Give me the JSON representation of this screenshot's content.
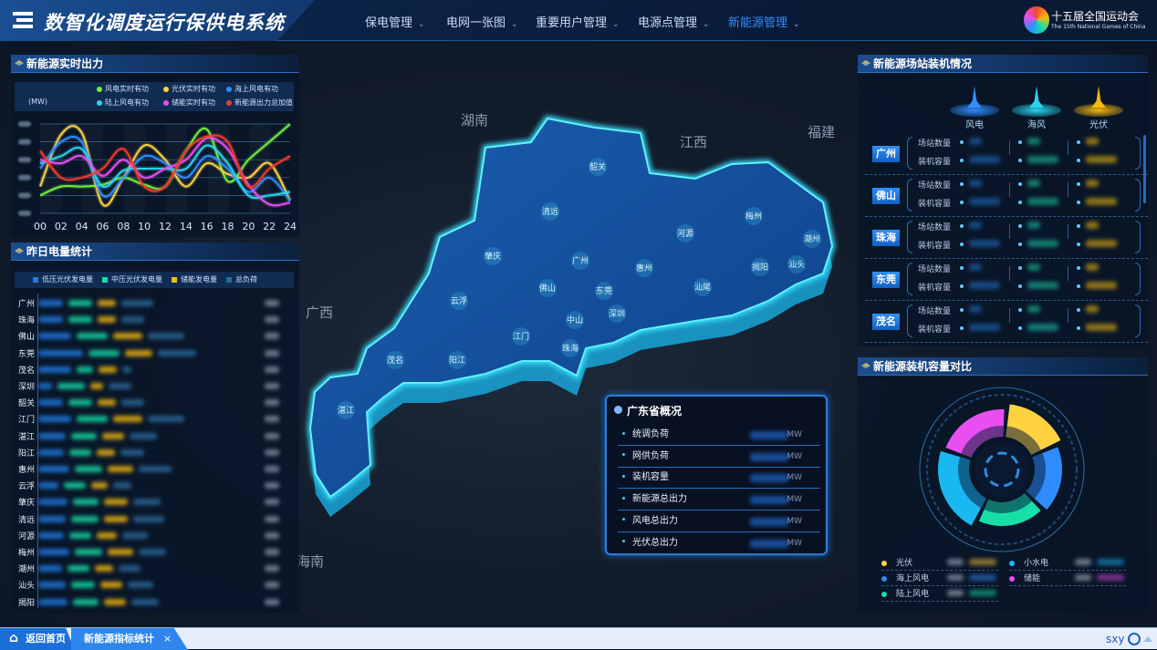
{
  "app": {
    "title": "数智化调度运行保供电系统",
    "logo_text": "十五届全国运动会",
    "logo_subtext": "The 15th National Games of China"
  },
  "nav": [
    {
      "label": "保电管理",
      "active": false
    },
    {
      "label": "电网一张图",
      "active": false
    },
    {
      "label": "重要用户管理",
      "active": false
    },
    {
      "label": "电源点管理",
      "active": false
    },
    {
      "label": "新能源管理",
      "active": true
    }
  ],
  "realtime": {
    "title": "新能源实时出力",
    "unit": "(MW)",
    "legend": [
      "风电实时有功",
      "光伏实时有功",
      "海上风电有功",
      "陆上风电有功",
      "储能实时有功",
      "新能源出力总加值"
    ]
  },
  "chart_data": [
    {
      "type": "line",
      "title": "新能源实时出力",
      "ylabel": "(MW)",
      "x": [
        "00",
        "02",
        "04",
        "06",
        "08",
        "10",
        "12",
        "14",
        "16",
        "18",
        "20",
        "22",
        "24"
      ],
      "ylim": [
        0,
        5
      ],
      "grid": true,
      "legend_position": "top",
      "series": [
        {
          "name": "风电实时有功",
          "color": "#6ef03c",
          "values": [
            1.0,
            1.5,
            1.5,
            1.6,
            2.0,
            1.6,
            1.5,
            3.5,
            4.7,
            1.8,
            3.0,
            4.0,
            5.0
          ]
        },
        {
          "name": "光伏实时有功",
          "color": "#ffd23f",
          "values": [
            1.5,
            4.4,
            4.5,
            0.5,
            2.0,
            3.8,
            3.0,
            1.5,
            2.8,
            2.2,
            2.0,
            2.8,
            0.7
          ]
        },
        {
          "name": "海上风电有功",
          "color": "#2f8dff",
          "values": [
            2.5,
            4.0,
            4.0,
            1.0,
            2.0,
            3.2,
            2.8,
            2.0,
            3.2,
            2.5,
            1.2,
            2.0,
            0.7
          ]
        },
        {
          "name": "陆上风电有功",
          "color": "#2ad4f0",
          "values": [
            2.8,
            3.2,
            3.6,
            1.5,
            2.4,
            2.5,
            2.5,
            2.5,
            3.8,
            2.8,
            1.0,
            1.0,
            1.2
          ]
        },
        {
          "name": "储能实时有功",
          "color": "#e84ef0",
          "values": [
            3.0,
            2.8,
            3.2,
            2.1,
            3.0,
            2.0,
            2.5,
            3.0,
            4.2,
            3.6,
            1.6,
            0.5,
            0.6
          ]
        },
        {
          "name": "新能源出力总加值",
          "color": "#f23a2a",
          "values": [
            3.5,
            2.0,
            2.0,
            2.5,
            3.6,
            1.5,
            1.5,
            3.5,
            4.3,
            4.0,
            1.5,
            2.5,
            3.2
          ]
        }
      ]
    },
    {
      "type": "pie",
      "title": "新能源装机容量对比",
      "categories": [
        "光伏",
        "海上风电",
        "陆上风电",
        "小水电",
        "储能"
      ],
      "colors": [
        "#ffd23f",
        "#2f8dff",
        "#16e0a8",
        "#19b8f0",
        "#e84ef0"
      ],
      "values": [
        17,
        19,
        20,
        23,
        21
      ]
    }
  ],
  "yesterday": {
    "title": "昨日电量统计",
    "legend": [
      {
        "label": "低压光伏发电量",
        "color": "#1f7de6"
      },
      {
        "label": "中压光伏发电量",
        "color": "#16e0a8"
      },
      {
        "label": "储能发电量",
        "color": "#f5b90f"
      },
      {
        "label": "总负荷",
        "color": "#2b6a9c"
      }
    ],
    "cities": [
      "广州",
      "珠海",
      "佛山",
      "东莞",
      "茂名",
      "深圳",
      "韶关",
      "江门",
      "湛江",
      "阳江",
      "惠州",
      "云浮",
      "肇庆",
      "清远",
      "河源",
      "梅州",
      "潮州",
      "汕头",
      "揭阳"
    ]
  },
  "map": {
    "regions": [
      "湖南",
      "江西",
      "福建",
      "广西",
      "海南"
    ],
    "cities": [
      "韶关",
      "清远",
      "梅州",
      "河源",
      "潮州",
      "肇庆",
      "广州",
      "惠州",
      "揭阳",
      "汕头",
      "云浮",
      "佛山",
      "东莞",
      "汕尾",
      "深圳",
      "中山",
      "江门",
      "珠海",
      "茂名",
      "阳江",
      "湛江"
    ]
  },
  "overview": {
    "title": "广东省概况",
    "rows": [
      {
        "label": "统调负荷",
        "unit": "MW"
      },
      {
        "label": "网供负荷",
        "unit": "MW"
      },
      {
        "label": "装机容量",
        "unit": "MW"
      },
      {
        "label": "新能源总出力",
        "unit": "MW"
      },
      {
        "label": "风电总出力",
        "unit": "MW"
      },
      {
        "label": "光伏总出力",
        "unit": "MW"
      }
    ]
  },
  "stations": {
    "title": "新能源场站装机情况",
    "types": [
      {
        "label": "风电",
        "icon": "wind-turbine-icon",
        "color": "#2f8dff"
      },
      {
        "label": "海风",
        "icon": "offshore-wind-icon",
        "color": "#2ad4f0"
      },
      {
        "label": "光伏",
        "icon": "solar-panel-icon",
        "color": "#f5b90f"
      }
    ],
    "row_labels": [
      "场站数量",
      "装机容量"
    ],
    "cities": [
      "广州",
      "佛山",
      "珠海",
      "东莞",
      "茂名"
    ]
  },
  "capacity": {
    "title": "新能源装机容量对比",
    "legend": [
      {
        "label": "光伏",
        "color": "#ffd23f"
      },
      {
        "label": "小水电",
        "color": "#19b8f0"
      },
      {
        "label": "海上风电",
        "color": "#2f8dff"
      },
      {
        "label": "储能",
        "color": "#e84ef0"
      },
      {
        "label": "陆上风电",
        "color": "#16e0a8"
      }
    ]
  },
  "bottom": {
    "home_tab": "返回首页",
    "active_tab": "新能源指标统计",
    "close": "×",
    "user": "sxy"
  }
}
